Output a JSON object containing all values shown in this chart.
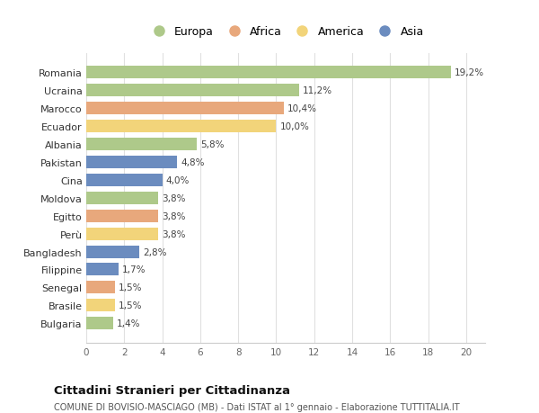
{
  "categories": [
    "Romania",
    "Ucraina",
    "Marocco",
    "Ecuador",
    "Albania",
    "Pakistan",
    "Cina",
    "Moldova",
    "Egitto",
    "Perù",
    "Bangladesh",
    "Filippine",
    "Senegal",
    "Brasile",
    "Bulgaria"
  ],
  "values": [
    19.2,
    11.2,
    10.4,
    10.0,
    5.8,
    4.8,
    4.0,
    3.8,
    3.8,
    3.8,
    2.8,
    1.7,
    1.5,
    1.5,
    1.4
  ],
  "labels": [
    "19,2%",
    "11,2%",
    "10,4%",
    "10,0%",
    "5,8%",
    "4,8%",
    "4,0%",
    "3,8%",
    "3,8%",
    "3,8%",
    "2,8%",
    "1,7%",
    "1,5%",
    "1,5%",
    "1,4%"
  ],
  "colors": [
    "#aec98a",
    "#aec98a",
    "#e8a87c",
    "#f2d47a",
    "#aec98a",
    "#6b8cbf",
    "#6b8cbf",
    "#aec98a",
    "#e8a87c",
    "#f2d47a",
    "#6b8cbf",
    "#6b8cbf",
    "#e8a87c",
    "#f2d47a",
    "#aec98a"
  ],
  "legend_labels": [
    "Europa",
    "Africa",
    "America",
    "Asia"
  ],
  "legend_colors": [
    "#aec98a",
    "#e8a87c",
    "#f2d47a",
    "#6b8cbf"
  ],
  "xlim": [
    0,
    21
  ],
  "xticks": [
    0,
    2,
    4,
    6,
    8,
    10,
    12,
    14,
    16,
    18,
    20
  ],
  "title": "Cittadini Stranieri per Cittadinanza",
  "subtitle": "COMUNE DI BOVISIO-MASCIAGO (MB) - Dati ISTAT al 1° gennaio - Elaborazione TUTTITALIA.IT",
  "background_color": "#ffffff",
  "plot_bg_color": "#ffffff",
  "grid_color": "#e0e0e0",
  "bar_height": 0.7
}
